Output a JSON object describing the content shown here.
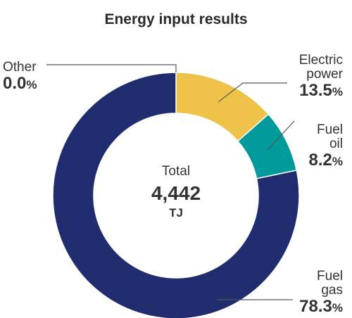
{
  "chart_data": {
    "type": "pie",
    "style": "donut",
    "title": "Energy input results",
    "center": {
      "label": "Total",
      "value": "4,442",
      "unit": "TJ"
    },
    "unit": "%",
    "slices": [
      {
        "name": "Electric power",
        "name_lines": [
          "Electric",
          "power"
        ],
        "value": 13.5,
        "label": "13.5",
        "color": "#EFC24A"
      },
      {
        "name": "Fuel oil",
        "name_lines": [
          "Fuel",
          "oil"
        ],
        "value": 8.2,
        "label": "8.2",
        "color": "#009A9A"
      },
      {
        "name": "Fuel gas",
        "name_lines": [
          "Fuel",
          "gas"
        ],
        "value": 78.3,
        "label": "78.3",
        "color": "#1F2D6E"
      },
      {
        "name": "Other",
        "name_lines": [
          "Other"
        ],
        "value": 0.0,
        "label": "0.0",
        "color": "#1F2D6E"
      }
    ]
  }
}
